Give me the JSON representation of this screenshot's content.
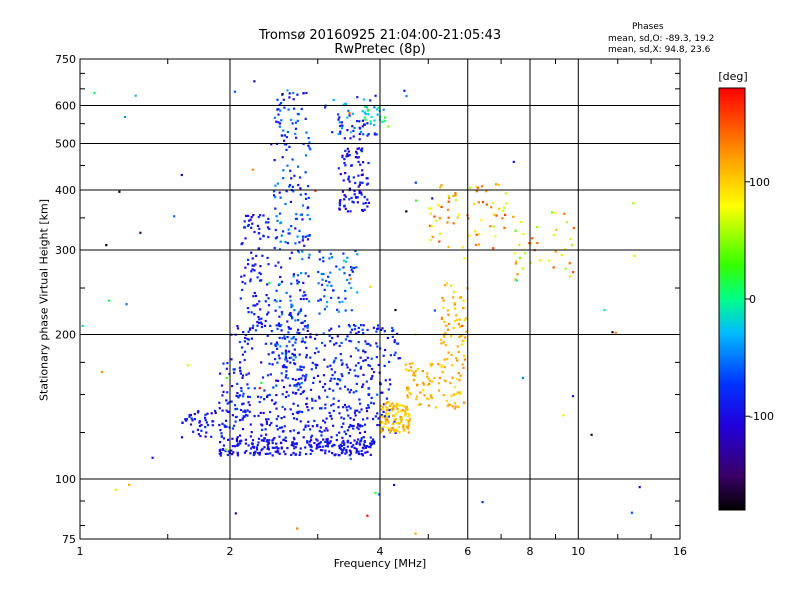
{
  "chart_data": {
    "type": "scatter",
    "title": "Tromsø 20160925 21:04:00-21:05:43",
    "subtitle": "RwPretec (8p)",
    "xlabel": "Frequency [MHz]",
    "ylabel": "Stationary phase Virtual Height [km]",
    "x_scale": "log",
    "y_scale": "log",
    "xlim": [
      1,
      16
    ],
    "ylim": [
      75,
      750
    ],
    "x_ticks": [
      "1",
      "2",
      "4",
      "6",
      "8",
      "10",
      "16"
    ],
    "y_ticks": [
      "750",
      "600",
      "500",
      "400",
      "300",
      "200",
      "100",
      "75"
    ],
    "grid": true,
    "stats": {
      "header": "Phases",
      "o_line": "mean, sd,O: -89.3, 19.2",
      "x_line": "mean, sd,X:  94.8, 23.6"
    },
    "colorbar": {
      "unit": "[deg]",
      "ticks": [
        "100",
        "0",
        "-100"
      ],
      "tick_values": [
        100,
        0,
        -100
      ],
      "range": [
        -180,
        180
      ],
      "colormap": "rainbow (black-purple-blue-cyan-green-yellow-red)"
    },
    "clusters": [
      {
        "f": [
          1.9,
          3.9
        ],
        "h": [
          112,
          122
        ],
        "phase": [
          -110,
          -80
        ],
        "n": 260
      },
      {
        "f": [
          1.6,
          4.3
        ],
        "h": [
          122,
          140
        ],
        "phase": [
          -110,
          -70
        ],
        "n": 220
      },
      {
        "f": [
          1.9,
          4.2
        ],
        "h": [
          140,
          175
        ],
        "phase": [
          -110,
          -60
        ],
        "n": 220
      },
      {
        "f": [
          2.0,
          4.4
        ],
        "h": [
          175,
          210
        ],
        "phase": [
          -110,
          -60
        ],
        "n": 170
      },
      {
        "f": [
          2.1,
          2.4
        ],
        "h": [
          210,
          360
        ],
        "phase": [
          -110,
          -70
        ],
        "n": 90
      },
      {
        "f": [
          2.45,
          2.9
        ],
        "h": [
          150,
          640
        ],
        "phase": [
          -110,
          -40
        ],
        "n": 260
      },
      {
        "f": [
          3.3,
          3.8
        ],
        "h": [
          360,
          560
        ],
        "phase": [
          -120,
          -70
        ],
        "n": 110
      },
      {
        "f": [
          3.1,
          4.0
        ],
        "h": [
          520,
          640
        ],
        "phase": [
          -100,
          -20
        ],
        "n": 40
      },
      {
        "f": [
          3.0,
          3.6
        ],
        "h": [
          220,
          300
        ],
        "phase": [
          -90,
          -30
        ],
        "n": 60
      },
      {
        "f": [
          4.0,
          4.6
        ],
        "h": [
          125,
          145
        ],
        "phase": [
          80,
          130
        ],
        "n": 110
      },
      {
        "f": [
          4.5,
          5.9
        ],
        "h": [
          140,
          175
        ],
        "phase": [
          90,
          130
        ],
        "n": 90
      },
      {
        "f": [
          5.3,
          6.0
        ],
        "h": [
          175,
          260
        ],
        "phase": [
          90,
          130
        ],
        "n": 60
      },
      {
        "f": [
          5.0,
          7.2
        ],
        "h": [
          300,
          420
        ],
        "phase": [
          60,
          160
        ],
        "n": 70
      },
      {
        "f": [
          7.4,
          9.8
        ],
        "h": [
          260,
          360
        ],
        "phase": [
          40,
          160
        ],
        "n": 40
      },
      {
        "f": [
          3.7,
          4.1
        ],
        "h": [
          540,
          600
        ],
        "phase": [
          -40,
          20
        ],
        "n": 20
      },
      {
        "f": [
          1.0,
          13.5
        ],
        "h": [
          76,
          700
        ],
        "phase": [
          -180,
          180
        ],
        "n": 70
      }
    ]
  }
}
